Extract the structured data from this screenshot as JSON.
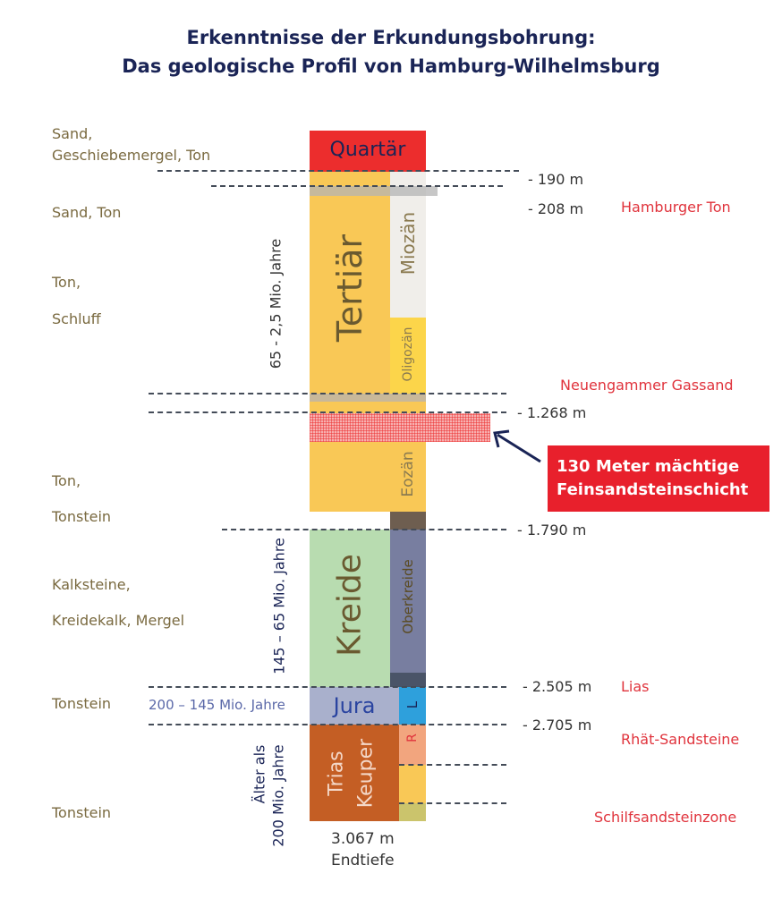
{
  "title": {
    "line1": "Erkenntnisse der Erkundungsbohrung:",
    "line2": "Das geologische Profil von Hamburg-Wilhelmsburg"
  },
  "left_labels": [
    "Sand,",
    "Geschiebemergel, Ton",
    "Sand, Ton",
    "Ton,",
    "Schluff",
    "Ton,",
    "Tonstein",
    "Kalksteine,",
    "Kreidekalk, Mergel",
    "Tonstein",
    "Tonstein"
  ],
  "ages": {
    "tertiaer": "65 - 2,5 Mio. Jahre",
    "kreide": "145 – 65 Mio. Jahre",
    "jura": "200 – 145 Mio. Jahre",
    "trias_1": "Älter als",
    "trias_2": "200 Mio. Jahre"
  },
  "layers": {
    "quartaer": "Quartär",
    "tertiaer": "Tertiär",
    "miozaen": "Miozän",
    "oligozaen": "Oligozän",
    "eozaen": "Eozän",
    "kreide": "Kreide",
    "oberkreide": "Oberkreide",
    "jura": "Jura",
    "lias_short": "L",
    "trias": "Trias",
    "keuper": "Keuper",
    "rhaet_short": "R"
  },
  "depths": {
    "d190": "- 190 m",
    "d208": "- 208 m",
    "d1268": "- 1.268 m",
    "d1790": "- 1.790 m",
    "d2505": "- 2.505 m",
    "d2705": "- 2.705 m",
    "end_depth": "3.067 m",
    "end_label": "Endtiefe"
  },
  "right_labels": {
    "hamburger_ton": "Hamburger Ton",
    "neuengammer": "Neuengammer Gassand",
    "lias": "Lias",
    "rhaet": "Rhät-Sandsteine",
    "schilf": "Schilfsandsteinzone"
  },
  "callout": {
    "line1": "130 Meter mächtige",
    "line2": "Feinsandsteinschicht"
  },
  "colors": {
    "quartaer": "#ec2d2d",
    "tertiaer": "#f9c856",
    "kreide": "#b8dcb0",
    "oberkreide": "#787ea0",
    "jura": "#a9b0cc",
    "lias": "#2ea0dc",
    "trias": "#c45e24",
    "callout": "#e8202c"
  }
}
